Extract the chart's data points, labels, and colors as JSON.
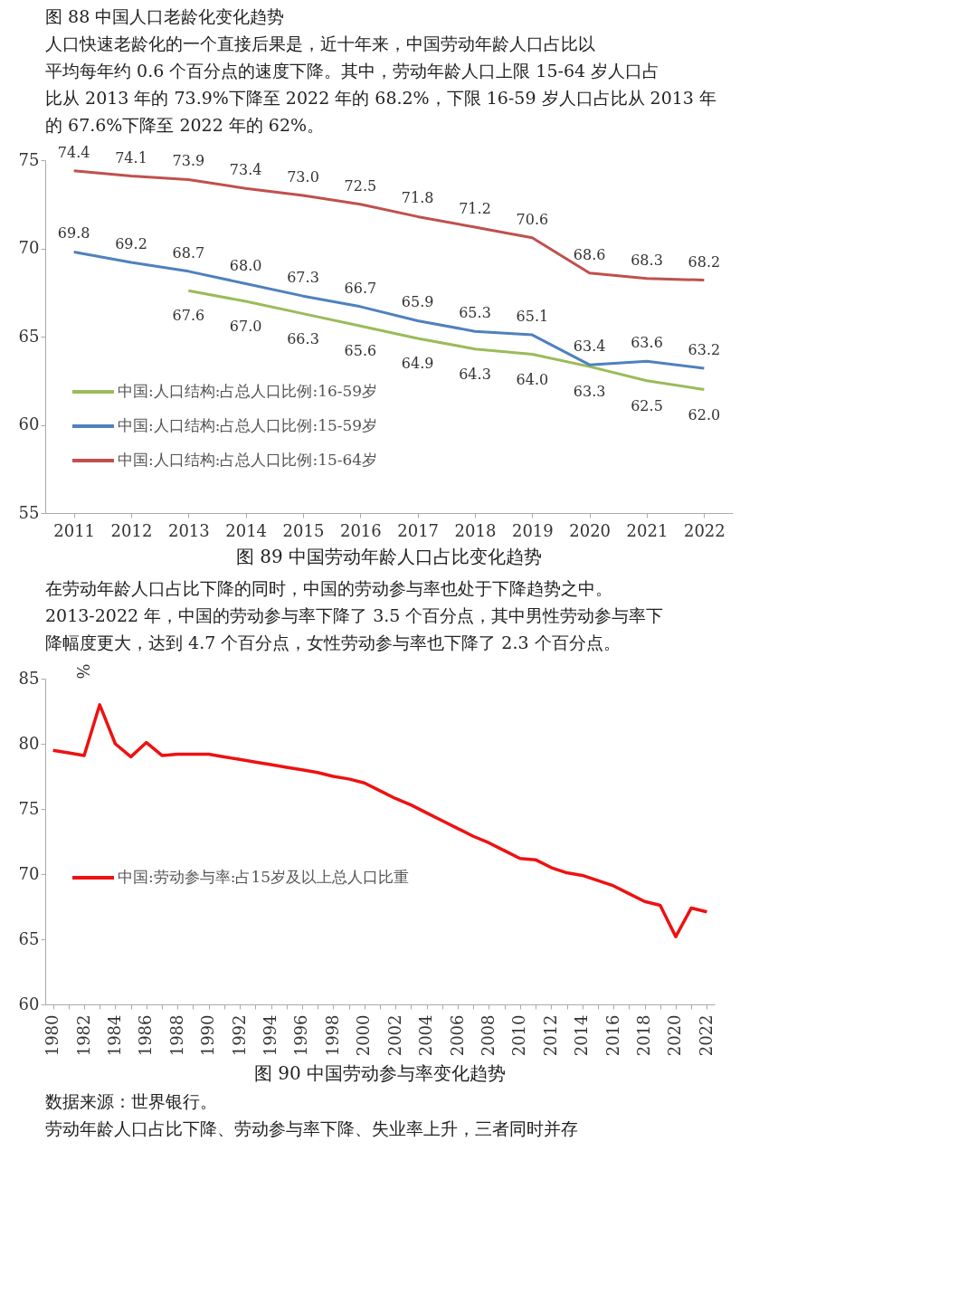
{
  "chart_data": [
    {
      "type": "line",
      "title": "图 89  中国劳动年龄人口占比变化趋势",
      "annotations": [
        "图 88  中国人口老龄化变化趋势",
        "人口快速老龄化的一个直接后果是，近十年来，中国劳动年龄人口占比以",
        "平均每年约 0.6 个百分点的速度下降。其中，劳动年龄人口上限 15-64 岁人口占",
        "比从 2013 年的 73.9%下降至 2022 年的 68.2%，下限 16-59 岁人口占比从 2013 年",
        "的 67.6%下降至 2022 年的 62%。"
      ],
      "categories": [
        "2011",
        "2012",
        "2013",
        "2014",
        "2015",
        "2016",
        "2017",
        "2018",
        "2019",
        "2020",
        "2021",
        "2022"
      ],
      "series": [
        {
          "name": "中国:人口结构:占总人口比例:16-59岁",
          "color": "#9bbb59",
          "values": [
            null,
            null,
            67.6,
            67.0,
            66.3,
            65.6,
            64.9,
            64.3,
            64.0,
            63.3,
            62.5,
            62.0
          ],
          "value_labels": [
            null,
            null,
            "67.6",
            "67.0",
            "66.3",
            "65.6",
            "64.9",
            "64.3",
            "64.0",
            "63.3",
            "62.5",
            "62.0"
          ]
        },
        {
          "name": "中国:人口结构:占总人口比例:15-59岁",
          "color": "#4f81bd",
          "values": [
            69.8,
            69.2,
            68.7,
            68.0,
            67.3,
            66.7,
            65.9,
            65.3,
            65.1,
            63.4,
            63.6,
            63.2
          ],
          "value_labels": [
            "69.8",
            "69.2",
            "68.7",
            "68.0",
            "67.3",
            "66.7",
            "65.9",
            "65.3",
            "65.1",
            "63.4",
            "63.6",
            "63.2"
          ]
        },
        {
          "name": "中国:人口结构:占总人口比例:15-64岁",
          "color": "#c0504d",
          "values": [
            74.4,
            74.1,
            73.9,
            73.4,
            73.0,
            72.5,
            71.8,
            71.2,
            70.6,
            68.6,
            68.3,
            68.2
          ],
          "value_labels": [
            "74.4",
            "74.1",
            "73.9",
            "73.4",
            "73.0",
            "72.5",
            "71.8",
            "71.2",
            "70.6",
            "68.6",
            "68.3",
            "68.2"
          ]
        }
      ],
      "ylim": [
        55,
        75
      ],
      "yticks": [
        55,
        60,
        65,
        70,
        75
      ],
      "grid": false,
      "legend": "bottom left",
      "marker": "none",
      "line_style": "solid"
    },
    {
      "type": "line",
      "title": "图 90  中国劳动参与率变化趋势",
      "ylabel": "%",
      "annotations": [
        "在劳动年龄人口占比下降的同时，中国的劳动参与率也处于下降趋势之中。",
        "2013-2022 年，中国的劳动参与率下降了 3.5 个百分点，其中男性劳动参与率下",
        "降幅度更大，达到 4.7 个百分点，女性劳动参与率也下降了 2.3 个百分点。",
        "数据来源：世界银行。",
        "劳动年龄人口占比下降、劳动参与率下降、失业率上升，三者同时并存"
      ],
      "categories": [
        "1980",
        null,
        "1982",
        null,
        "1984",
        null,
        "1986",
        null,
        "1988",
        null,
        "1990",
        null,
        "1992",
        null,
        "1994",
        null,
        "1996",
        null,
        "1998",
        null,
        "2000",
        null,
        "2002",
        null,
        "2004",
        null,
        "2006",
        null,
        "2008",
        null,
        "2010",
        null,
        "2012",
        null,
        "2014",
        null,
        "2016",
        null,
        "2018",
        null,
        "2020",
        null,
        "2022"
      ],
      "series": [
        {
          "name": "中国:劳动参与率:占15岁及以上总人口比重",
          "color": "#ee1111",
          "values": [
            79.5,
            79.3,
            79.1,
            83.0,
            80.0,
            79.0,
            80.1,
            79.1,
            79.2,
            79.2,
            79.2,
            79.0,
            78.8,
            78.6,
            78.4,
            78.2,
            78.0,
            77.8,
            77.5,
            77.3,
            77.0,
            76.4,
            75.8,
            75.3,
            74.7,
            74.1,
            73.5,
            72.9,
            72.4,
            71.8,
            71.2,
            71.1,
            70.5,
            70.1,
            69.9,
            69.5,
            69.1,
            68.5,
            67.9,
            67.6,
            65.2,
            67.4,
            67.1
          ]
        }
      ],
      "ylim": [
        60,
        85
      ],
      "yticks": [
        60,
        65,
        70,
        75,
        80,
        85
      ],
      "grid": false,
      "legend": "left",
      "marker": "none",
      "line_style": "solid"
    }
  ]
}
